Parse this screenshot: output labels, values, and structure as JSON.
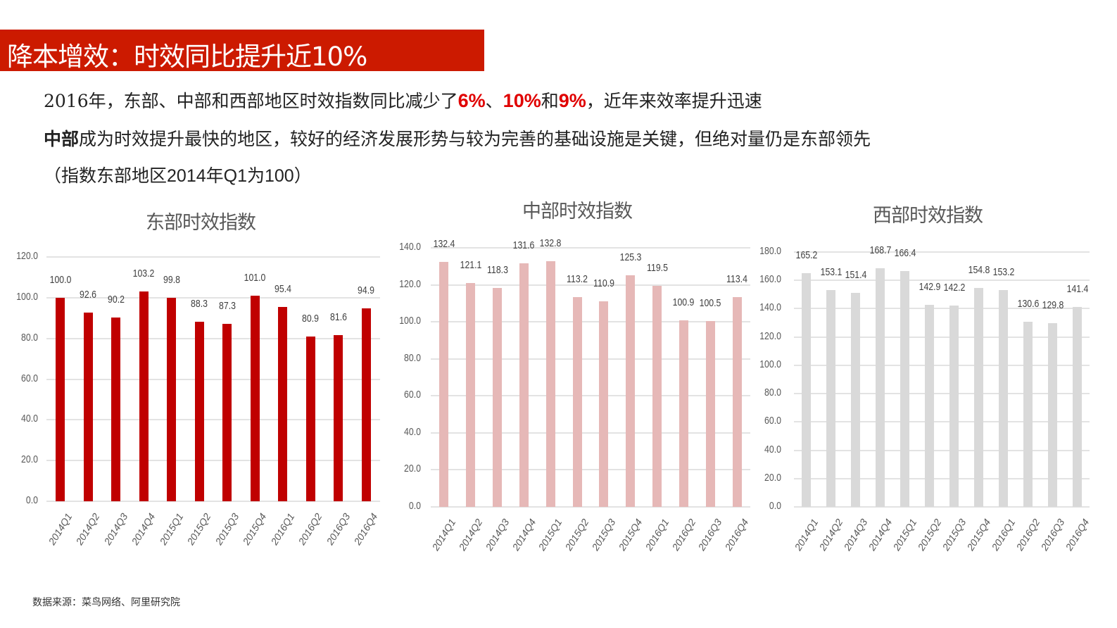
{
  "header": {
    "title": "降本增效：时效同比提升近10%",
    "banner_color": "#cc1a00"
  },
  "body_text": {
    "line1": {
      "prefix": "2016年，东部、中部和西部地区时效指数同比减少了",
      "pct_east": "6%",
      "sep1": "、",
      "pct_middle": "10%",
      "sep2": "和",
      "pct_west": "9%",
      "suffix": "，近年来效率提升迅速",
      "highlight_color": "#e00000"
    },
    "line2": {
      "bold": "中部",
      "rest": "成为时效提升最快的地区，较好的经济发展形势与较为完善的基础设施是关键，但绝对量仍是东部领先"
    },
    "line3": {
      "open": "（指数东部地区",
      "mid": "2014年Q1为100",
      "close": "）"
    }
  },
  "source": "数据来源：菜鸟网络、阿里研究院",
  "chart_data": [
    {
      "type": "bar",
      "title": "东部时效指数",
      "categories": [
        "2014Q1",
        "2014Q2",
        "2014Q3",
        "2014Q4",
        "2015Q1",
        "2015Q2",
        "2015Q3",
        "2015Q4",
        "2016Q1",
        "2016Q2",
        "2016Q3",
        "2016Q4"
      ],
      "values": [
        100.0,
        92.6,
        90.2,
        103.2,
        99.8,
        88.3,
        87.3,
        101.0,
        95.4,
        80.9,
        81.6,
        94.9
      ],
      "labels": [
        "100.0",
        "92.6",
        "90.2",
        "103.2",
        "99.8",
        "88.3",
        "87.3",
        "101.0",
        "95.4",
        "80.9",
        "81.6",
        "94.9"
      ],
      "yticks": [
        "0.0",
        "20.0",
        "40.0",
        "60.0",
        "80.0",
        "100.0",
        "120.0"
      ],
      "ylim": [
        0,
        120
      ],
      "color": "#c00000",
      "xlabel": "",
      "ylabel": "",
      "grid": true,
      "legend": "none"
    },
    {
      "type": "bar",
      "title": "中部时效指数",
      "categories": [
        "2014Q1",
        "2014Q2",
        "2014Q3",
        "2014Q4",
        "2015Q1",
        "2015Q2",
        "2015Q3",
        "2015Q4",
        "2016Q1",
        "2016Q2",
        "2016Q3",
        "2016Q4"
      ],
      "values": [
        132.4,
        121.1,
        118.3,
        131.6,
        132.8,
        113.2,
        110.9,
        125.3,
        119.5,
        100.9,
        100.5,
        113.4
      ],
      "labels": [
        "132.4",
        "121.1",
        "118.3",
        "131.6",
        "132.8",
        "113.2",
        "110.9",
        "125.3",
        "119.5",
        "100.9",
        "100.5",
        "113.4"
      ],
      "yticks": [
        "0.0",
        "20.0",
        "40.0",
        "60.0",
        "80.0",
        "100.0",
        "120.0",
        "140.0"
      ],
      "ylim": [
        0,
        140
      ],
      "color": "#e6b8b7",
      "xlabel": "",
      "ylabel": "",
      "grid": true,
      "legend": "none"
    },
    {
      "type": "bar",
      "title": "西部时效指数",
      "categories": [
        "2014Q1",
        "2014Q2",
        "2014Q3",
        "2014Q4",
        "2015Q1",
        "2015Q2",
        "2015Q3",
        "2015Q4",
        "2016Q1",
        "2016Q2",
        "2016Q3",
        "2016Q4"
      ],
      "values": [
        165.2,
        153.1,
        151.4,
        168.7,
        166.4,
        142.9,
        142.2,
        154.8,
        153.2,
        130.6,
        129.8,
        141.4
      ],
      "labels": [
        "165.2",
        "153.1",
        "151.4",
        "168.7",
        "166.4",
        "142.9",
        "142.2",
        "154.8",
        "153.2",
        "130.6",
        "129.8",
        "141.4"
      ],
      "yticks": [
        "0.0",
        "20.0",
        "40.0",
        "60.0",
        "80.0",
        "100.0",
        "120.0",
        "140.0",
        "160.0",
        "180.0"
      ],
      "ylim": [
        0,
        180
      ],
      "color": "#d9d9d9",
      "xlabel": "",
      "ylabel": "",
      "grid": true,
      "legend": "none"
    }
  ]
}
